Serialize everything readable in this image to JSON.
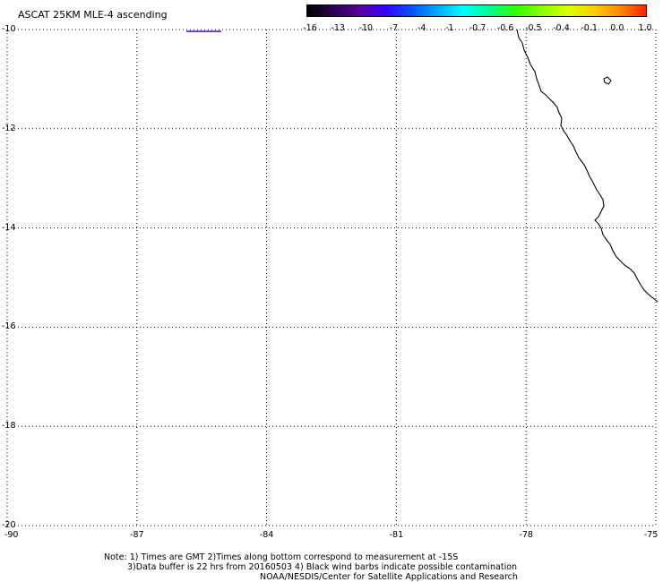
{
  "title": "ASCAT 25KM MLE-4 ascending",
  "colorbar": {
    "colors": [
      "#000000",
      "#2d0050",
      "#5a00a0",
      "#3300ff",
      "#0055ff",
      "#00aaff",
      "#00ffff",
      "#00ff88",
      "#33ff00",
      "#88ff00",
      "#ddff00",
      "#ffcc00",
      "#ff8800",
      "#ff2200"
    ],
    "labels": [
      "-16",
      "-13",
      "-10",
      "-7",
      "-4",
      "-1",
      "-0.7",
      "-0.6",
      "-0.5",
      "-0.4",
      "-0.1",
      "0.0",
      "1.0"
    ]
  },
  "map": {
    "lon_labels": [
      "-90",
      "-87",
      "-84",
      "-81",
      "-78",
      "-75"
    ],
    "lat_labels": [
      "-10",
      "-12",
      "-14",
      "-16",
      "-18",
      "-20"
    ],
    "lon_range": [
      -90,
      -75
    ],
    "lat_range": [
      -20,
      -10
    ],
    "grid": true,
    "gridline_style": "dotted",
    "coastline_color": "#000000",
    "swath_marker_color": "#5500aa"
  },
  "notes": {
    "line1": "Note: 1) Times are GMT 2)Times along bottom correspond to measurement at -15S",
    "line2": "3)Data buffer is 22 hrs from 20160503 4) Black wind barbs indicate possible contamination",
    "line3": "NOAA/NESDIS/Center for Satellite Applications and Research"
  }
}
